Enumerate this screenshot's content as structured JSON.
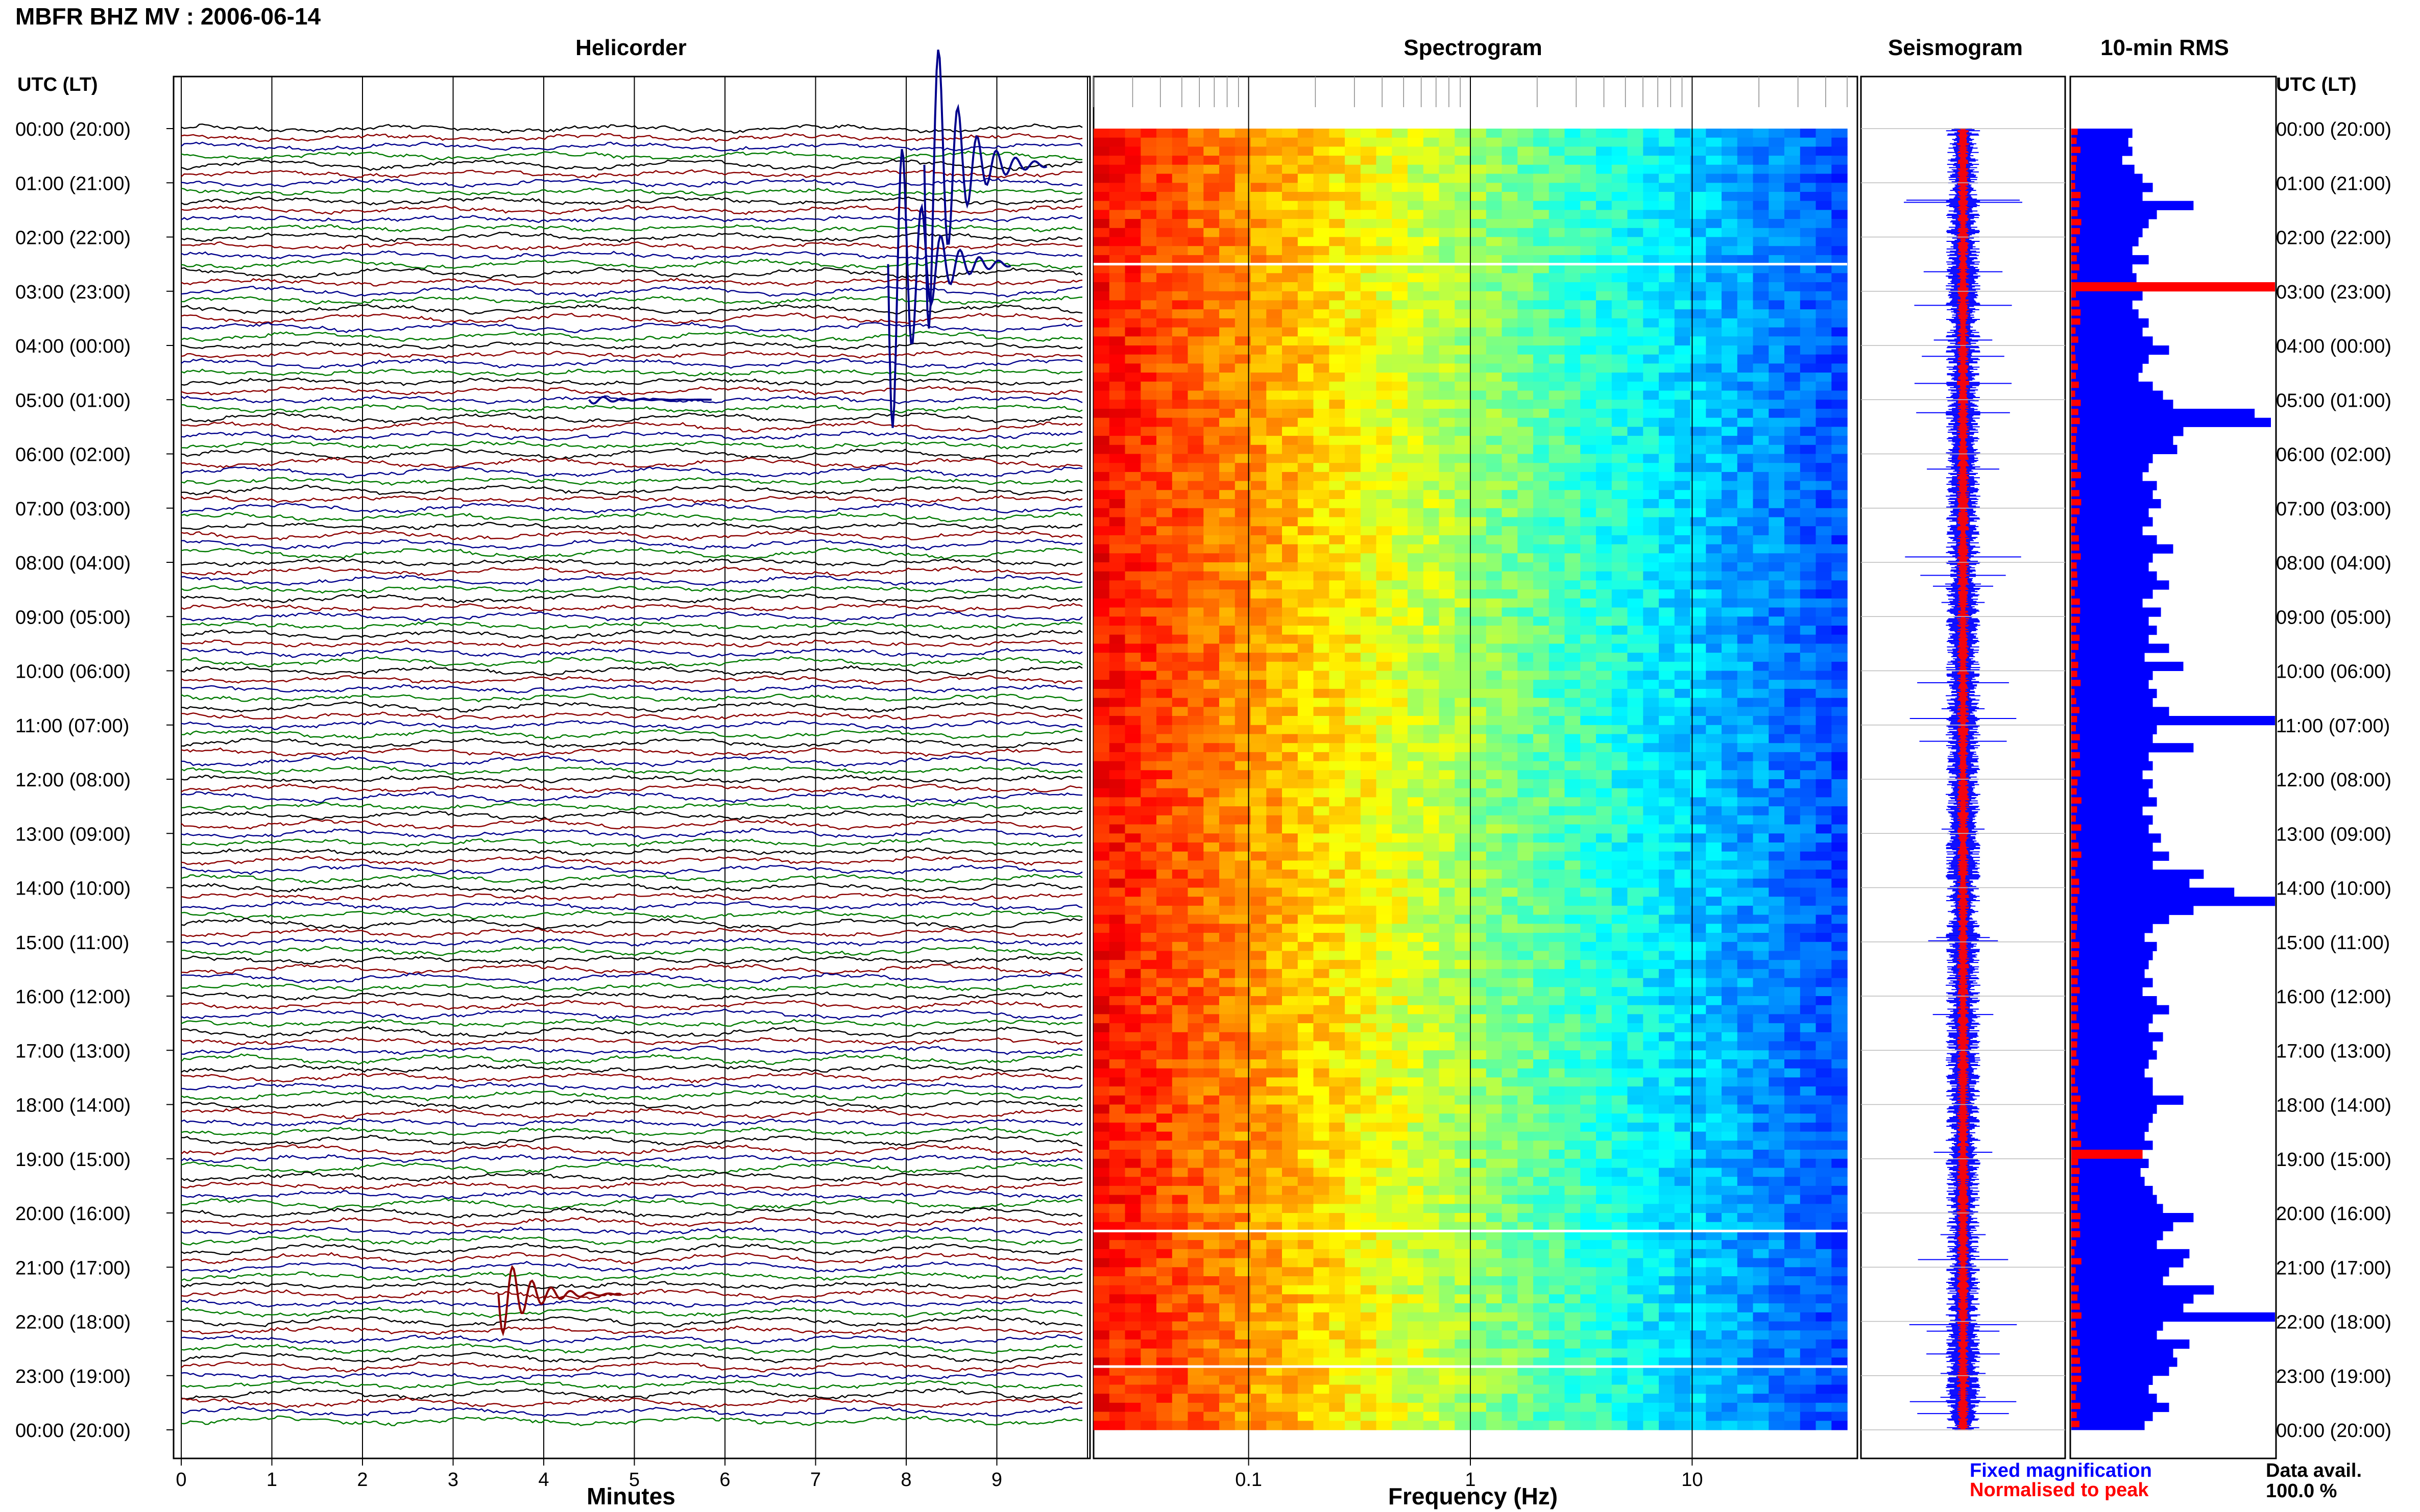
{
  "header": {
    "title": "MBFR BHZ MV : 2006-06-14",
    "utc_label_left": "UTC (LT)",
    "utc_label_right": "UTC (LT)"
  },
  "panels": {
    "helicorder": "Helicorder",
    "spectrogram": "Spectrogram",
    "seismogram": "Seismogram",
    "rms": "10-min RMS"
  },
  "time_labels": [
    "00:00 (20:00)",
    "01:00 (21:00)",
    "02:00 (22:00)",
    "03:00 (23:00)",
    "04:00 (00:00)",
    "05:00 (01:00)",
    "06:00 (02:00)",
    "07:00 (03:00)",
    "08:00 (04:00)",
    "09:00 (05:00)",
    "10:00 (06:00)",
    "11:00 (07:00)",
    "12:00 (08:00)",
    "13:00 (09:00)",
    "14:00 (10:00)",
    "15:00 (11:00)",
    "16:00 (12:00)",
    "17:00 (13:00)",
    "18:00 (14:00)",
    "19:00 (15:00)",
    "20:00 (16:00)",
    "21:00 (17:00)",
    "22:00 (18:00)",
    "23:00 (19:00)",
    "00:00 (20:00)"
  ],
  "axes": {
    "minutes_label": "Minutes",
    "minutes_ticks": [
      "0",
      "1",
      "2",
      "3",
      "4",
      "5",
      "6",
      "7",
      "8",
      "9"
    ],
    "frequency_label": "Frequency (Hz)",
    "frequency_ticks": [
      "0.1",
      "1",
      "10"
    ]
  },
  "legend": {
    "fixed": "Fixed magnification",
    "fixed_color": "#0000ff",
    "normalised": "Normalised to peak",
    "normalised_color": "#ff0000"
  },
  "data_avail": {
    "label": "Data avail.",
    "value": "100.0 %"
  },
  "colors": {
    "trace_cycle": [
      "#000000",
      "#8b0000",
      "#00008b",
      "#007a00"
    ],
    "rms_bar": "#0000ff",
    "rms_peak": "#ff0000"
  },
  "chart_data": [
    {
      "type": "line",
      "title": "Helicorder",
      "xlabel": "Minutes",
      "xlim": [
        0,
        10
      ],
      "rows": 144,
      "row_minutes": 10,
      "notable_events": [
        {
          "time_utc": "00:40",
          "minute": 8.2,
          "note": "large clipped transient"
        },
        {
          "time_utc": "02:30",
          "minute": 7.8,
          "note": "large clipped transient"
        },
        {
          "time_utc": "05:00",
          "minute": 4.5,
          "note": "long-period oscillation"
        },
        {
          "time_utc": "21:30",
          "minute": 3.5,
          "note": "large transient"
        }
      ]
    },
    {
      "type": "heatmap",
      "title": "Spectrogram",
      "xlabel": "Frequency (Hz)",
      "xscale": "log",
      "xlim": [
        0.02,
        50
      ],
      "colormap": "jet",
      "description_bands": [
        {
          "fmax": 0.05,
          "level": "high"
        },
        {
          "fmax": 0.2,
          "level": "medium"
        },
        {
          "fmax": 1,
          "level": "medium-low"
        },
        {
          "fmax": 50,
          "level": "low"
        }
      ],
      "bright_lines_utc": [
        "02:30",
        "20:20",
        "22:50"
      ]
    },
    {
      "type": "line",
      "title": "Seismogram",
      "series": [
        {
          "name": "Fixed magnification"
        },
        {
          "name": "Normalised to peak"
        }
      ]
    },
    {
      "type": "bar",
      "title": "10-min RMS",
      "orientation": "horizontal",
      "rows": 144,
      "values": [
        0.3,
        0.28,
        0.3,
        0.25,
        0.31,
        0.35,
        0.4,
        0.35,
        0.6,
        0.42,
        0.38,
        0.35,
        0.33,
        0.3,
        0.38,
        0.3,
        0.32,
        1.0,
        0.35,
        0.3,
        0.33,
        0.38,
        0.35,
        0.4,
        0.48,
        0.38,
        0.35,
        0.33,
        0.4,
        0.45,
        0.5,
        0.9,
        0.98,
        0.55,
        0.5,
        0.52,
        0.4,
        0.38,
        0.35,
        0.42,
        0.4,
        0.44,
        0.38,
        0.4,
        0.35,
        0.42,
        0.5,
        0.4,
        0.38,
        0.42,
        0.48,
        0.4,
        0.35,
        0.44,
        0.38,
        0.42,
        0.38,
        0.48,
        0.36,
        0.55,
        0.4,
        0.38,
        0.42,
        0.4,
        0.48,
        1.0,
        0.42,
        0.4,
        0.6,
        0.38,
        0.4,
        0.35,
        0.4,
        0.38,
        0.42,
        0.35,
        0.4,
        0.38,
        0.44,
        0.4,
        0.48,
        0.4,
        0.65,
        0.58,
        0.8,
        1.0,
        0.6,
        0.48,
        0.4,
        0.36,
        0.42,
        0.4,
        0.38,
        0.36,
        0.4,
        0.35,
        0.42,
        0.48,
        0.4,
        0.38,
        0.45,
        0.4,
        0.42,
        0.38,
        0.36,
        0.4,
        0.4,
        0.55,
        0.42,
        0.4,
        0.38,
        0.36,
        0.4,
        0.35,
        0.38,
        0.34,
        0.36,
        0.4,
        0.42,
        0.45,
        0.6,
        0.5,
        0.45,
        0.42,
        0.58,
        0.55,
        0.48,
        0.45,
        0.7,
        0.6,
        0.55,
        1.0,
        0.45,
        0.42,
        0.58,
        0.5,
        0.52,
        0.48,
        0.4,
        0.38,
        0.42,
        0.48,
        0.4,
        0.36
      ],
      "peak_rows": [
        17,
        113
      ]
    }
  ]
}
